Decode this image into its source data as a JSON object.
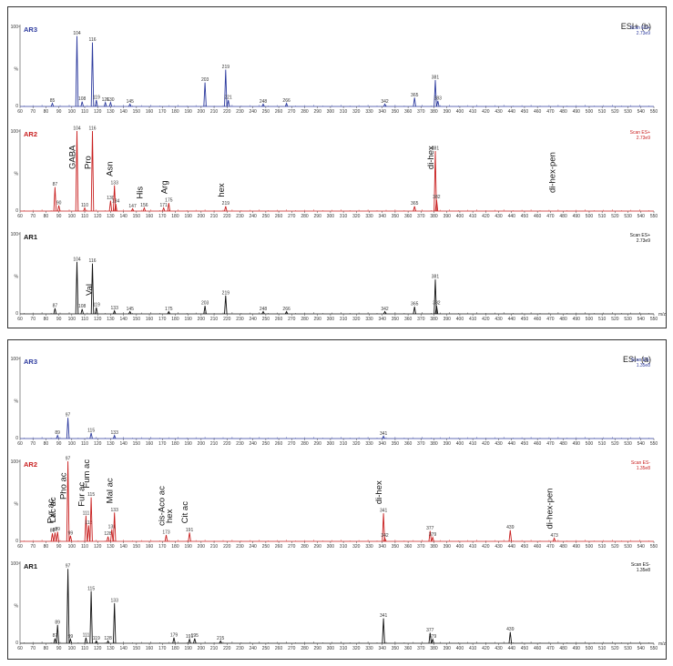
{
  "chart_data": [
    {
      "type": "line",
      "mode_label": "ESI+ (b)",
      "x_unit": "m/z",
      "xlim": [
        60,
        550
      ],
      "x_ticks": [
        60,
        70,
        80,
        90,
        100,
        110,
        120,
        130,
        140,
        150,
        160,
        170,
        180,
        190,
        200,
        210,
        220,
        230,
        240,
        250,
        260,
        270,
        280,
        290,
        300,
        310,
        320,
        330,
        340,
        350,
        360,
        370,
        380,
        390,
        400,
        410,
        420,
        430,
        440,
        450,
        460,
        470,
        480,
        490,
        500,
        510,
        520,
        530,
        540,
        550
      ],
      "traces": [
        {
          "name": "AR3",
          "color": "#2c3a9e",
          "scan_label": "Scan ES+",
          "scan_value": "2.73e9",
          "peaks": [
            {
              "x": 85,
              "y": 4,
              "label": "85"
            },
            {
              "x": 104,
              "y": 88,
              "label": "104"
            },
            {
              "x": 108,
              "y": 6,
              "label": "108"
            },
            {
              "x": 116,
              "y": 80,
              "label": "116"
            },
            {
              "x": 119,
              "y": 8,
              "label": "119"
            },
            {
              "x": 126,
              "y": 5,
              "label": "126"
            },
            {
              "x": 130,
              "y": 5,
              "label": "130"
            },
            {
              "x": 145,
              "y": 3,
              "label": "145"
            },
            {
              "x": 203,
              "y": 30,
              "label": "203"
            },
            {
              "x": 219,
              "y": 46,
              "label": "219"
            },
            {
              "x": 221,
              "y": 8,
              "label": "221"
            },
            {
              "x": 248,
              "y": 3,
              "label": "248"
            },
            {
              "x": 266,
              "y": 4,
              "label": "266"
            },
            {
              "x": 342,
              "y": 3,
              "label": "342"
            },
            {
              "x": 365,
              "y": 11,
              "label": "365"
            },
            {
              "x": 381,
              "y": 33,
              "label": "381"
            },
            {
              "x": 383,
              "y": 7,
              "label": "383"
            }
          ],
          "compounds": []
        },
        {
          "name": "AR2",
          "color": "#c81e1e",
          "scan_label": "Scan ES+",
          "scan_value": "2.73e9",
          "peaks": [
            {
              "x": 87,
              "y": 30,
              "label": "87"
            },
            {
              "x": 90,
              "y": 7,
              "label": "90"
            },
            {
              "x": 104,
              "y": 100,
              "label": "104"
            },
            {
              "x": 110,
              "y": 4,
              "label": "110"
            },
            {
              "x": 116,
              "y": 100,
              "label": "116"
            },
            {
              "x": 130,
              "y": 13,
              "label": "130"
            },
            {
              "x": 133,
              "y": 32,
              "label": "133"
            },
            {
              "x": 134,
              "y": 9,
              "label": "134"
            },
            {
              "x": 147,
              "y": 3,
              "label": "147"
            },
            {
              "x": 156,
              "y": 4,
              "label": "156"
            },
            {
              "x": 171,
              "y": 4,
              "label": "171"
            },
            {
              "x": 175,
              "y": 10,
              "label": "175"
            },
            {
              "x": 219,
              "y": 6,
              "label": "219"
            },
            {
              "x": 365,
              "y": 6,
              "label": "365"
            },
            {
              "x": 381,
              "y": 75,
              "label": "381"
            },
            {
              "x": 382,
              "y": 14,
              "label": "382"
            }
          ],
          "compounds": [
            {
              "x": 104,
              "label": "GABA"
            },
            {
              "x": 116,
              "label": "Pro"
            },
            {
              "x": 133,
              "label": "Asn"
            },
            {
              "x": 156,
              "label": "His"
            },
            {
              "x": 175,
              "label": "Arg"
            },
            {
              "x": 219,
              "label": "hex"
            },
            {
              "x": 381,
              "label": "di-hex"
            },
            {
              "x": 475,
              "label": "di-hex-pen"
            }
          ]
        },
        {
          "name": "AR1",
          "color": "#111111",
          "scan_label": "Scan ES+",
          "scan_value": "2.73e9",
          "peaks": [
            {
              "x": 87,
              "y": 7,
              "label": "87"
            },
            {
              "x": 104,
              "y": 65,
              "label": "104"
            },
            {
              "x": 108,
              "y": 6,
              "label": "108"
            },
            {
              "x": 116,
              "y": 63,
              "label": "116"
            },
            {
              "x": 119,
              "y": 8,
              "label": "119"
            },
            {
              "x": 133,
              "y": 4,
              "label": "133"
            },
            {
              "x": 145,
              "y": 3,
              "label": "145"
            },
            {
              "x": 175,
              "y": 3,
              "label": "175"
            },
            {
              "x": 203,
              "y": 10,
              "label": "203"
            },
            {
              "x": 219,
              "y": 23,
              "label": "219"
            },
            {
              "x": 248,
              "y": 3,
              "label": "248"
            },
            {
              "x": 266,
              "y": 3,
              "label": "266"
            },
            {
              "x": 342,
              "y": 3,
              "label": "342"
            },
            {
              "x": 365,
              "y": 9,
              "label": "365"
            },
            {
              "x": 381,
              "y": 43,
              "label": "381"
            },
            {
              "x": 382,
              "y": 10,
              "label": "382"
            }
          ],
          "compounds": [
            {
              "x": 117,
              "label": "Val"
            }
          ]
        }
      ]
    },
    {
      "type": "line",
      "mode_label": "ESI- (a)",
      "x_unit": "m/z",
      "xlim": [
        60,
        550
      ],
      "x_ticks": [
        60,
        70,
        80,
        90,
        100,
        110,
        120,
        130,
        140,
        150,
        160,
        170,
        180,
        190,
        200,
        210,
        220,
        230,
        240,
        250,
        260,
        270,
        280,
        290,
        300,
        310,
        320,
        330,
        340,
        350,
        360,
        370,
        380,
        390,
        400,
        410,
        420,
        430,
        440,
        450,
        460,
        470,
        480,
        490,
        500,
        510,
        520,
        530,
        540,
        550
      ],
      "traces": [
        {
          "name": "AR3",
          "color": "#2c3a9e",
          "scan_label": "Scan ES-",
          "scan_value": "1.35e8",
          "peaks": [
            {
              "x": 89,
              "y": 4,
              "label": "89"
            },
            {
              "x": 97,
              "y": 26,
              "label": "97"
            },
            {
              "x": 115,
              "y": 7,
              "label": "115"
            },
            {
              "x": 133,
              "y": 4,
              "label": "133"
            },
            {
              "x": 341,
              "y": 3,
              "label": "341"
            }
          ],
          "compounds": []
        },
        {
          "name": "AR2",
          "color": "#c81e1e",
          "scan_label": "Scan ES-",
          "scan_value": "1.35e8",
          "peaks": [
            {
              "x": 85,
              "y": 10,
              "label": "85"
            },
            {
              "x": 87,
              "y": 11,
              "label": "87"
            },
            {
              "x": 89,
              "y": 12,
              "label": "89"
            },
            {
              "x": 97,
              "y": 100,
              "label": "97"
            },
            {
              "x": 99,
              "y": 7,
              "label": "99"
            },
            {
              "x": 111,
              "y": 32,
              "label": "111"
            },
            {
              "x": 113,
              "y": 20,
              "label": "113"
            },
            {
              "x": 115,
              "y": 55,
              "label": "115"
            },
            {
              "x": 128,
              "y": 6,
              "label": "128"
            },
            {
              "x": 131,
              "y": 15,
              "label": "131"
            },
            {
              "x": 133,
              "y": 36,
              "label": "133"
            },
            {
              "x": 173,
              "y": 8,
              "label": "173"
            },
            {
              "x": 191,
              "y": 11,
              "label": "191"
            },
            {
              "x": 341,
              "y": 35,
              "label": "341"
            },
            {
              "x": 342,
              "y": 4,
              "label": "342"
            },
            {
              "x": 377,
              "y": 13,
              "label": "377"
            },
            {
              "x": 379,
              "y": 5,
              "label": "379"
            },
            {
              "x": 439,
              "y": 14,
              "label": "439"
            },
            {
              "x": 473,
              "y": 4,
              "label": "473"
            }
          ],
          "compounds": [
            {
              "x": 87,
              "label": "Pyr ac"
            },
            {
              "x": 89,
              "label": "Lac ac"
            },
            {
              "x": 97,
              "label": "Pho ac"
            },
            {
              "x": 111,
              "label": "Fur ac"
            },
            {
              "x": 115,
              "label": "Fum ac"
            },
            {
              "x": 133,
              "label": "Mal ac"
            },
            {
              "x": 173,
              "label": "cis-Aco ac"
            },
            {
              "x": 179,
              "label": "hex"
            },
            {
              "x": 191,
              "label": "Cit ac"
            },
            {
              "x": 341,
              "label": "di-hex"
            },
            {
              "x": 473,
              "label": "di-hex-pen"
            }
          ]
        },
        {
          "name": "AR1",
          "color": "#111111",
          "scan_label": "Scan ES-",
          "scan_value": "1.35e8",
          "peaks": [
            {
              "x": 87,
              "y": 6,
              "label": "87"
            },
            {
              "x": 89,
              "y": 23,
              "label": "89"
            },
            {
              "x": 97,
              "y": 93,
              "label": "97"
            },
            {
              "x": 99,
              "y": 5,
              "label": "99"
            },
            {
              "x": 111,
              "y": 7,
              "label": "111"
            },
            {
              "x": 115,
              "y": 65,
              "label": "115"
            },
            {
              "x": 119,
              "y": 3,
              "label": "119"
            },
            {
              "x": 128,
              "y": 3,
              "label": "128"
            },
            {
              "x": 133,
              "y": 50,
              "label": "133"
            },
            {
              "x": 179,
              "y": 7,
              "label": "179"
            },
            {
              "x": 191,
              "y": 5,
              "label": "191"
            },
            {
              "x": 195,
              "y": 6,
              "label": "195"
            },
            {
              "x": 215,
              "y": 3,
              "label": "215"
            },
            {
              "x": 341,
              "y": 31,
              "label": "341"
            },
            {
              "x": 377,
              "y": 13,
              "label": "377"
            },
            {
              "x": 379,
              "y": 5,
              "label": "379"
            },
            {
              "x": 439,
              "y": 14,
              "label": "439"
            }
          ],
          "compounds": []
        }
      ]
    }
  ]
}
